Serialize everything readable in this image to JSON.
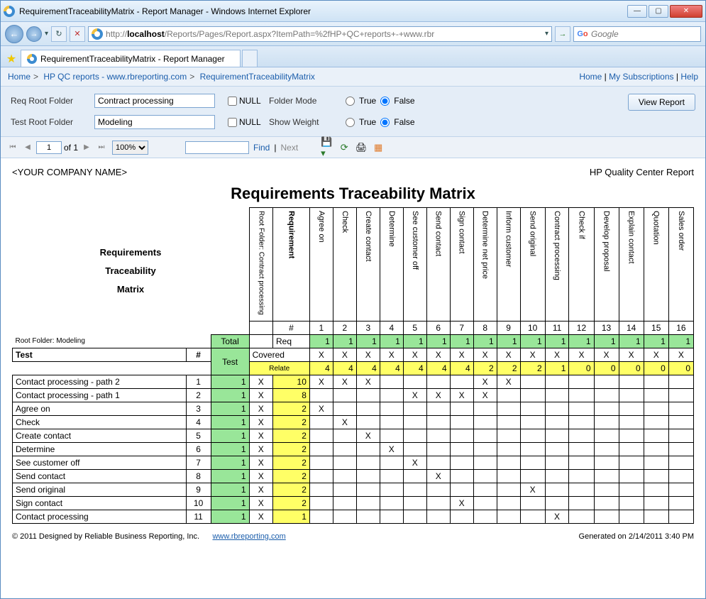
{
  "window": {
    "title": "RequirementTraceabilityMatrix - Report Manager - Windows Internet Explorer"
  },
  "address": {
    "url_prefix": "http://",
    "url_host": "localhost",
    "url_rest": "/Reports/Pages/Report.aspx?ItemPath=%2fHP+QC+reports+-+www.rbr"
  },
  "search": {
    "placeholder": "Google"
  },
  "tab": {
    "title": "RequirementTraceabilityMatrix - Report Manager"
  },
  "breadcrumb": {
    "items": [
      "Home",
      "HP QC reports - www.rbreporting.com",
      "RequirementTraceabilityMatrix"
    ],
    "right": [
      "Home",
      "My Subscriptions",
      "Help"
    ]
  },
  "params": {
    "req_root_label": "Req Root Folder",
    "req_root_value": "Contract processing",
    "test_root_label": "Test Root Folder",
    "test_root_value": "Modeling",
    "null_label": "NULL",
    "folder_mode_label": "Folder Mode",
    "show_weight_label": "Show Weight",
    "true_label": "True",
    "false_label": "False",
    "folder_mode_value": "False",
    "show_weight_value": "False",
    "view_report": "View Report"
  },
  "toolbar": {
    "page": "1",
    "of": "of 1",
    "zoom": "100%",
    "find": "Find",
    "next": "Next"
  },
  "report": {
    "company": "<YOUR COMPANY NAME>",
    "system": "HP Quality Center Report",
    "title": "Requirements Traceability Matrix",
    "corner_l1": "Requirements",
    "corner_l2": "Traceability",
    "corner_l3": "Matrix",
    "root_req": "Root Folder: Contract processing",
    "root_test": "Root Folder: Modeling",
    "col_requirement": "Requirement",
    "columns": [
      "Agree on",
      "Check",
      "Create contact",
      "Determine",
      "See customer off",
      "Send contact",
      "Sign contact",
      "Determine net price",
      "Inform customer",
      "Send original",
      "Contract processing",
      "Check if",
      "Develop proposal",
      "Explain contact",
      "Quotation",
      "Sales order"
    ],
    "col_nums": [
      "1",
      "2",
      "3",
      "4",
      "5",
      "6",
      "7",
      "8",
      "9",
      "10",
      "11",
      "12",
      "13",
      "14",
      "15",
      "16"
    ],
    "hash": "#",
    "total": "Total",
    "req_label": "Req",
    "covered_label": "Covered",
    "test_header": "Test",
    "test_label": "Test",
    "relate_label": "Relate",
    "req_counts": [
      "1",
      "1",
      "1",
      "1",
      "1",
      "1",
      "1",
      "1",
      "1",
      "1",
      "1",
      "1",
      "1",
      "1",
      "1",
      "1"
    ],
    "covered": [
      "X",
      "X",
      "X",
      "X",
      "X",
      "X",
      "X",
      "X",
      "X",
      "X",
      "X",
      "X",
      "X",
      "X",
      "X",
      "X"
    ],
    "relate": [
      "4",
      "4",
      "4",
      "4",
      "4",
      "4",
      "4",
      "2",
      "2",
      "2",
      "1",
      "0",
      "0",
      "0",
      "0",
      "0"
    ],
    "tests": [
      {
        "name": "Contact processing - path 2",
        "n": "1",
        "t": "1",
        "x": "X",
        "r": "10",
        "cells": [
          "X",
          "X",
          "X",
          "",
          "",
          "",
          "",
          "X",
          "X",
          "",
          "",
          "",
          "",
          "",
          "",
          ""
        ]
      },
      {
        "name": "Contact processing - path 1",
        "n": "2",
        "t": "1",
        "x": "X",
        "r": "8",
        "cells": [
          "",
          "",
          "",
          "",
          "X",
          "X",
          "X",
          "X",
          "",
          "",
          "",
          "",
          "",
          "",
          "",
          ""
        ]
      },
      {
        "name": "Agree on",
        "n": "3",
        "t": "1",
        "x": "X",
        "r": "2",
        "cells": [
          "X",
          "",
          "",
          "",
          "",
          "",
          "",
          "",
          "",
          "",
          "",
          "",
          "",
          "",
          "",
          ""
        ]
      },
      {
        "name": "Check",
        "n": "4",
        "t": "1",
        "x": "X",
        "r": "2",
        "cells": [
          "",
          "X",
          "",
          "",
          "",
          "",
          "",
          "",
          "",
          "",
          "",
          "",
          "",
          "",
          "",
          ""
        ]
      },
      {
        "name": "Create contact",
        "n": "5",
        "t": "1",
        "x": "X",
        "r": "2",
        "cells": [
          "",
          "",
          "X",
          "",
          "",
          "",
          "",
          "",
          "",
          "",
          "",
          "",
          "",
          "",
          "",
          ""
        ]
      },
      {
        "name": "Determine",
        "n": "6",
        "t": "1",
        "x": "X",
        "r": "2",
        "cells": [
          "",
          "",
          "",
          "X",
          "",
          "",
          "",
          "",
          "",
          "",
          "",
          "",
          "",
          "",
          "",
          ""
        ]
      },
      {
        "name": "See customer off",
        "n": "7",
        "t": "1",
        "x": "X",
        "r": "2",
        "cells": [
          "",
          "",
          "",
          "",
          "X",
          "",
          "",
          "",
          "",
          "",
          "",
          "",
          "",
          "",
          "",
          ""
        ]
      },
      {
        "name": "Send contact",
        "n": "8",
        "t": "1",
        "x": "X",
        "r": "2",
        "cells": [
          "",
          "",
          "",
          "",
          "",
          "X",
          "",
          "",
          "",
          "",
          "",
          "",
          "",
          "",
          "",
          ""
        ]
      },
      {
        "name": "Send original",
        "n": "9",
        "t": "1",
        "x": "X",
        "r": "2",
        "cells": [
          "",
          "",
          "",
          "",
          "",
          "",
          "",
          "",
          "",
          "X",
          "",
          "",
          "",
          "",
          "",
          ""
        ]
      },
      {
        "name": "Sign contact",
        "n": "10",
        "t": "1",
        "x": "X",
        "r": "2",
        "cells": [
          "",
          "",
          "",
          "",
          "",
          "",
          "X",
          "",
          "",
          "",
          "",
          "",
          "",
          "",
          "",
          ""
        ]
      },
      {
        "name": "Contact processing",
        "n": "11",
        "t": "1",
        "x": "X",
        "r": "1",
        "cells": [
          "",
          "",
          "",
          "",
          "",
          "",
          "",
          "",
          "",
          "",
          "X",
          "",
          "",
          "",
          "",
          ""
        ]
      }
    ]
  },
  "footer": {
    "copyright": "© 2011 Designed by Reliable Business Reporting, Inc.",
    "link": "www.rbreporting.com",
    "generated": "Generated on 2/14/2011 3:40 PM"
  }
}
